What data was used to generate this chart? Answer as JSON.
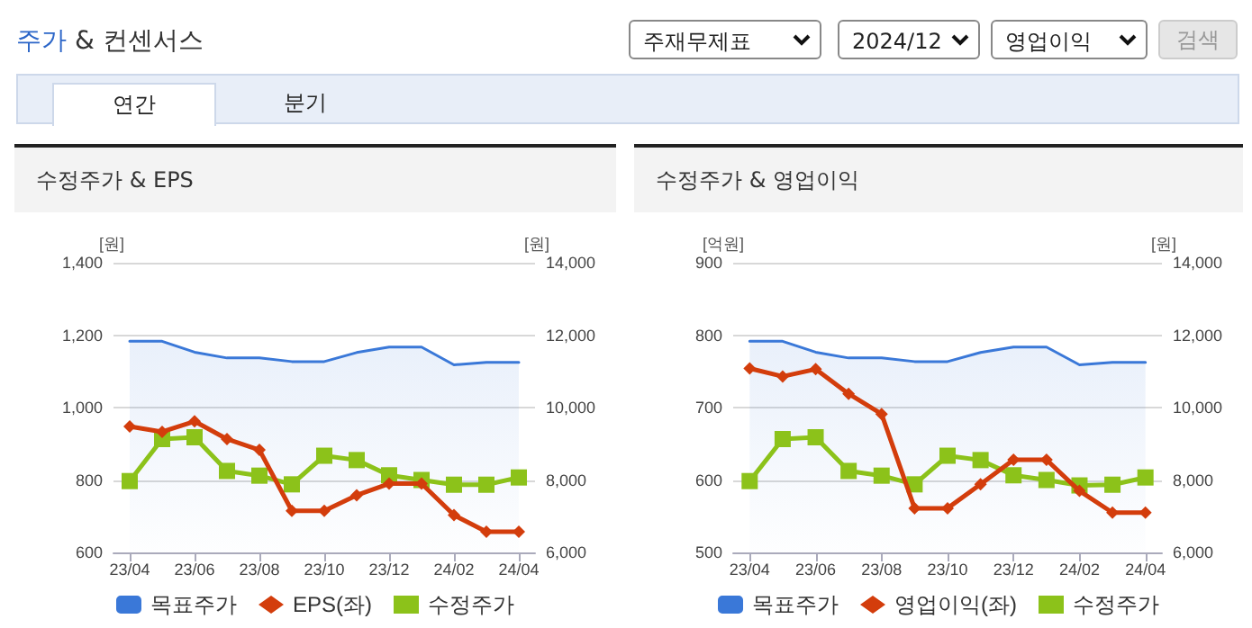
{
  "chart_data": [
    {
      "type": "other",
      "title": "주가 & 컨센서스",
      "annotations": [
        "주재무제표",
        "2024/12",
        "영업이익",
        "검색",
        "연간",
        "분기"
      ]
    },
    {
      "type": "line",
      "title": "수정주가 & EPS",
      "ylabel": "[원]",
      "y2label": "[원]",
      "categories": [
        "23/04",
        null,
        "23/06",
        null,
        "23/08",
        null,
        "23/10",
        null,
        "23/12",
        null,
        "24/02",
        null,
        "24/04"
      ],
      "ylim": [
        600,
        1400
      ],
      "yticks": [
        600,
        800,
        {
          "value": 1000,
          "label": "1,000"
        },
        {
          "value": 1200,
          "label": "1,200"
        },
        {
          "value": 1400,
          "label": "1,400"
        }
      ],
      "y2lim": [
        6000,
        14000
      ],
      "y2ticks": [
        {
          "value": 6000,
          "label": "6,000"
        },
        {
          "value": 8000,
          "label": "8,000"
        },
        {
          "value": 10000,
          "label": "10,000"
        },
        {
          "value": 12000,
          "label": "12,000"
        },
        {
          "value": 14000,
          "label": "14,000"
        }
      ],
      "grid": "y",
      "legend": "bottom",
      "series": [
        {
          "name": "목표주가",
          "type": "area",
          "axis": "y2",
          "marker": "none",
          "color": "#3a78d8",
          "values": [
            11830,
            11830,
            11530,
            11370,
            11370,
            11270,
            11270,
            11520,
            11670,
            11670,
            11180,
            11250,
            11250
          ]
        },
        {
          "name": "EPS(좌)",
          "type": "line",
          "marker": "diamond",
          "color": "#d33d0c",
          "values": [
            948,
            933,
            962,
            913,
            883,
            715,
            715,
            758,
            790,
            790,
            703,
            657,
            657
          ]
        },
        {
          "name": "수정주가",
          "type": "line",
          "axis": "y2",
          "marker": "square",
          "color": "#8cc21a",
          "values": [
            7970,
            9130,
            9180,
            8250,
            8120,
            7880,
            8670,
            8550,
            8130,
            8000,
            7870,
            7870,
            8070
          ]
        }
      ]
    },
    {
      "type": "line",
      "title": "수정주가 & 영업이익",
      "ylabel": "[억원]",
      "y2label": "[원]",
      "categories": [
        "23/04",
        null,
        "23/06",
        null,
        "23/08",
        null,
        "23/10",
        null,
        "23/12",
        null,
        "24/02",
        null,
        "24/04"
      ],
      "ylim": [
        500,
        900
      ],
      "yticks": [
        500,
        600,
        700,
        800,
        900
      ],
      "y2lim": [
        6000,
        14000
      ],
      "y2ticks": [
        {
          "value": 6000,
          "label": "6,000"
        },
        {
          "value": 8000,
          "label": "8,000"
        },
        {
          "value": 10000,
          "label": "10,000"
        },
        {
          "value": 12000,
          "label": "12,000"
        },
        {
          "value": 14000,
          "label": "14,000"
        }
      ],
      "grid": "y",
      "legend": "bottom",
      "series": [
        {
          "name": "목표주가",
          "type": "area",
          "axis": "y2",
          "marker": "none",
          "color": "#3a78d8",
          "values": [
            11830,
            11830,
            11530,
            11370,
            11370,
            11270,
            11270,
            11520,
            11670,
            11670,
            11180,
            11250,
            11250
          ]
        },
        {
          "name": "영업이익(좌)",
          "type": "line",
          "marker": "diamond",
          "color": "#d33d0c",
          "values": [
            754,
            743,
            753,
            719,
            691,
            561,
            561,
            594,
            628,
            628,
            585,
            555,
            555
          ]
        },
        {
          "name": "수정주가",
          "type": "line",
          "axis": "y2",
          "marker": "square",
          "color": "#8cc21a",
          "values": [
            7970,
            9130,
            9180,
            8250,
            8120,
            7880,
            8670,
            8550,
            8130,
            8000,
            7850,
            7870,
            8070
          ]
        }
      ]
    }
  ]
}
